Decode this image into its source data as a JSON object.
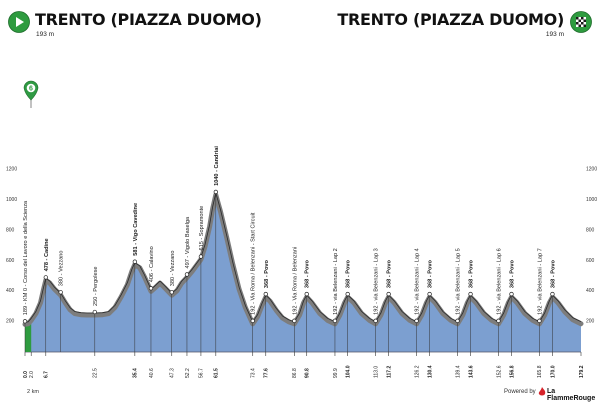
{
  "header": {
    "start_title": "TRENTO (PIAZZA DUOMO)",
    "start_alt": "193 m",
    "finish_title": "TRENTO (PIAZZA DUOMO)",
    "finish_alt": "193 m",
    "start_icon": "play-icon",
    "finish_icon": "checkered-flag-icon",
    "stage_badge": "6"
  },
  "footer": {
    "powered_by": "Powered by",
    "brand": "La FlammeRouge",
    "scale_label": "2 km"
  },
  "colors": {
    "fill_blue": "#7c9fd0",
    "ridge_gray": "#7d7d7d",
    "start_green": "#2e9b3f",
    "badge_green": "#2f9a43"
  },
  "chart_data": {
    "type": "area",
    "title": "",
    "xlabel": "",
    "ylabel": "",
    "ylim": [
      0,
      1250
    ],
    "y_ticks": [
      200,
      400,
      600,
      800,
      1000,
      1200
    ],
    "x_range": [
      0,
      179.2
    ],
    "x_ticks": [
      {
        "km": 0.0,
        "label": "0.0",
        "bold": true
      },
      {
        "km": 2.0,
        "label": "2.0",
        "bold": false
      },
      {
        "km": 6.7,
        "label": "6.7",
        "bold": true
      },
      {
        "km": 22.5,
        "label": "22.5",
        "bold": false
      },
      {
        "km": 35.4,
        "label": "35.4",
        "bold": true
      },
      {
        "km": 40.6,
        "label": "40.6",
        "bold": false
      },
      {
        "km": 47.3,
        "label": "47.3",
        "bold": false
      },
      {
        "km": 52.2,
        "label": "52.2",
        "bold": false
      },
      {
        "km": 56.7,
        "label": "56.7",
        "bold": false
      },
      {
        "km": 61.5,
        "label": "61.5",
        "bold": true
      },
      {
        "km": 73.4,
        "label": "73.4",
        "bold": false
      },
      {
        "km": 77.6,
        "label": "77.6",
        "bold": true
      },
      {
        "km": 86.8,
        "label": "86.8",
        "bold": false
      },
      {
        "km": 90.8,
        "label": "90.8",
        "bold": true
      },
      {
        "km": 99.9,
        "label": "99.9",
        "bold": false
      },
      {
        "km": 104.0,
        "label": "104.0",
        "bold": true
      },
      {
        "km": 113.0,
        "label": "113.0",
        "bold": false
      },
      {
        "km": 117.2,
        "label": "117.2",
        "bold": true
      },
      {
        "km": 126.2,
        "label": "126.2",
        "bold": false
      },
      {
        "km": 130.4,
        "label": "130.4",
        "bold": true
      },
      {
        "km": 139.4,
        "label": "139.4",
        "bold": false
      },
      {
        "km": 143.6,
        "label": "143.6",
        "bold": true
      },
      {
        "km": 152.6,
        "label": "152.6",
        "bold": false
      },
      {
        "km": 156.8,
        "label": "156.8",
        "bold": true
      },
      {
        "km": 165.8,
        "label": "165.8",
        "bold": false
      },
      {
        "km": 170.0,
        "label": "170.0",
        "bold": true
      },
      {
        "km": 179.2,
        "label": "179.2",
        "bold": true
      }
    ],
    "markers": [
      {
        "km": 0.0,
        "alt": 189,
        "label": "189 - KM 0 - Corso del Lavoro e della Scienza",
        "bold": false
      },
      {
        "km": 6.7,
        "alt": 478,
        "label": "478 - Cadine",
        "bold": true
      },
      {
        "km": 11.5,
        "alt": 380,
        "label": "380 - Vezzano",
        "bold": false
      },
      {
        "km": 22.5,
        "alt": 250,
        "label": "250 - Pergolese",
        "bold": false
      },
      {
        "km": 35.4,
        "alt": 581,
        "label": "581 - Vigo Cavedine",
        "bold": true
      },
      {
        "km": 40.6,
        "alt": 406,
        "label": "406 - Calavino",
        "bold": false
      },
      {
        "km": 47.3,
        "alt": 380,
        "label": "380 - Vezzano",
        "bold": false
      },
      {
        "km": 52.2,
        "alt": 497,
        "label": "497 - Vigolo Baselga",
        "bold": false
      },
      {
        "km": 56.7,
        "alt": 615,
        "label": "615 - Sopramonte",
        "bold": false
      },
      {
        "km": 61.5,
        "alt": 1040,
        "label": "1040 - Candriai",
        "bold": true
      },
      {
        "km": 73.4,
        "alt": 192,
        "label": "192 - Via Roma / Belenzani - Start Circuit",
        "bold": false
      },
      {
        "km": 77.6,
        "alt": 368,
        "label": "368 - Povo",
        "bold": true
      },
      {
        "km": 86.8,
        "alt": 192,
        "label": "192 - Via Roma / Belenzani",
        "bold": false
      },
      {
        "km": 90.8,
        "alt": 368,
        "label": "368 - Povo",
        "bold": true
      },
      {
        "km": 99.9,
        "alt": 192,
        "label": "192 - via Belenzani - Lap 2",
        "bold": false
      },
      {
        "km": 104.0,
        "alt": 368,
        "label": "368 - Povo",
        "bold": true
      },
      {
        "km": 113.0,
        "alt": 192,
        "label": "192 - via Belenzani - Lap 3",
        "bold": false
      },
      {
        "km": 117.2,
        "alt": 368,
        "label": "368 - Povo",
        "bold": true
      },
      {
        "km": 126.2,
        "alt": 192,
        "label": "192 - via Belenzani - Lap 4",
        "bold": false
      },
      {
        "km": 130.4,
        "alt": 368,
        "label": "368 - Povo",
        "bold": true
      },
      {
        "km": 139.4,
        "alt": 192,
        "label": "192 - via Belenzani - Lap 5",
        "bold": false
      },
      {
        "km": 143.6,
        "alt": 368,
        "label": "368 - Povo",
        "bold": true
      },
      {
        "km": 152.6,
        "alt": 192,
        "label": "192 - via Belenzani - Lap 6",
        "bold": false
      },
      {
        "km": 156.8,
        "alt": 368,
        "label": "368 - Povo",
        "bold": true
      },
      {
        "km": 165.8,
        "alt": 192,
        "label": "192 - via Belenzani - Lap 7",
        "bold": false
      },
      {
        "km": 170.0,
        "alt": 368,
        "label": "368 - Povo",
        "bold": true
      }
    ],
    "profile": [
      [
        0,
        189
      ],
      [
        1,
        192
      ],
      [
        2,
        215
      ],
      [
        3.5,
        260
      ],
      [
        5,
        330
      ],
      [
        6,
        420
      ],
      [
        6.7,
        478
      ],
      [
        8,
        460
      ],
      [
        9.5,
        420
      ],
      [
        11.5,
        380
      ],
      [
        13,
        330
      ],
      [
        14.5,
        285
      ],
      [
        16,
        260
      ],
      [
        18,
        252
      ],
      [
        20,
        250
      ],
      [
        22.5,
        250
      ],
      [
        25,
        252
      ],
      [
        27,
        260
      ],
      [
        29,
        300
      ],
      [
        31,
        370
      ],
      [
        33,
        450
      ],
      [
        34.5,
        540
      ],
      [
        35.4,
        581
      ],
      [
        37,
        560
      ],
      [
        38.5,
        500
      ],
      [
        40.6,
        406
      ],
      [
        42,
        430
      ],
      [
        43.5,
        460
      ],
      [
        45,
        430
      ],
      [
        47.3,
        380
      ],
      [
        49,
        410
      ],
      [
        50.5,
        460
      ],
      [
        52.2,
        497
      ],
      [
        54,
        540
      ],
      [
        56.7,
        615
      ],
      [
        58,
        700
      ],
      [
        59.5,
        830
      ],
      [
        60.5,
        950
      ],
      [
        61.5,
        1040
      ],
      [
        63,
        930
      ],
      [
        65,
        760
      ],
      [
        67,
        580
      ],
      [
        69,
        420
      ],
      [
        71,
        300
      ],
      [
        73.4,
        192
      ],
      [
        75,
        240
      ],
      [
        76.5,
        320
      ],
      [
        77.6,
        368
      ],
      [
        79,
        340
      ],
      [
        81,
        280
      ],
      [
        83,
        230
      ],
      [
        85,
        205
      ],
      [
        86.8,
        192
      ],
      [
        88.5,
        250
      ],
      [
        89.8,
        330
      ],
      [
        90.8,
        368
      ],
      [
        92.5,
        330
      ],
      [
        95,
        260
      ],
      [
        97.5,
        215
      ],
      [
        99.9,
        192
      ],
      [
        101.5,
        250
      ],
      [
        103,
        330
      ],
      [
        104,
        368
      ],
      [
        106,
        330
      ],
      [
        108.5,
        260
      ],
      [
        111,
        215
      ],
      [
        113,
        192
      ],
      [
        114.7,
        250
      ],
      [
        116.2,
        330
      ],
      [
        117.2,
        368
      ],
      [
        119,
        330
      ],
      [
        121.5,
        260
      ],
      [
        124,
        215
      ],
      [
        126.2,
        192
      ],
      [
        127.9,
        250
      ],
      [
        129.4,
        330
      ],
      [
        130.4,
        368
      ],
      [
        132.2,
        330
      ],
      [
        134.7,
        260
      ],
      [
        137.2,
        215
      ],
      [
        139.4,
        192
      ],
      [
        141.1,
        250
      ],
      [
        142.6,
        330
      ],
      [
        143.6,
        368
      ],
      [
        145.4,
        330
      ],
      [
        147.9,
        260
      ],
      [
        150.4,
        215
      ],
      [
        152.6,
        192
      ],
      [
        154.3,
        250
      ],
      [
        155.8,
        330
      ],
      [
        156.8,
        368
      ],
      [
        158.6,
        330
      ],
      [
        161.1,
        260
      ],
      [
        163.6,
        215
      ],
      [
        165.8,
        192
      ],
      [
        167.5,
        250
      ],
      [
        169,
        330
      ],
      [
        170,
        368
      ],
      [
        171.8,
        330
      ],
      [
        174,
        270
      ],
      [
        176.5,
        220
      ],
      [
        179.2,
        193
      ]
    ]
  }
}
